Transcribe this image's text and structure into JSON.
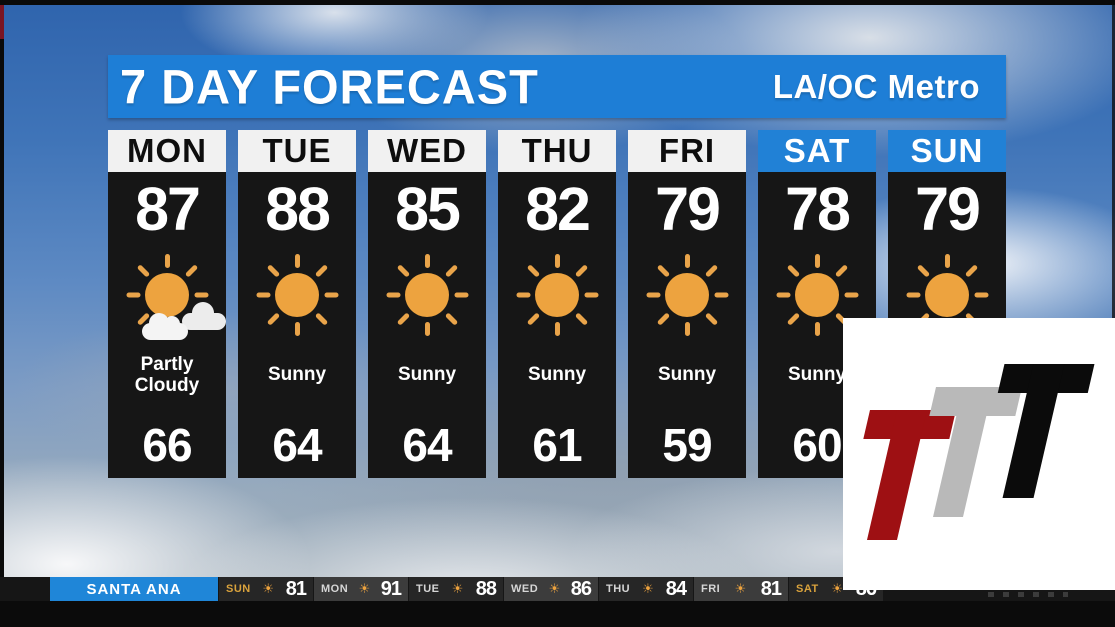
{
  "header": {
    "title": "7 DAY FORECAST",
    "region": "LA/OC Metro"
  },
  "forecast": {
    "days": [
      {
        "label": "MON",
        "high": "87",
        "icon": "partly-cloudy-icon",
        "condition": "Partly Cloudy",
        "low": "66",
        "header_style": "light"
      },
      {
        "label": "TUE",
        "high": "88",
        "icon": "sun-icon",
        "condition": "Sunny",
        "low": "64",
        "header_style": "light"
      },
      {
        "label": "WED",
        "high": "85",
        "icon": "sun-icon",
        "condition": "Sunny",
        "low": "64",
        "header_style": "light"
      },
      {
        "label": "THU",
        "high": "82",
        "icon": "sun-icon",
        "condition": "Sunny",
        "low": "61",
        "header_style": "light"
      },
      {
        "label": "FRI",
        "high": "79",
        "icon": "sun-icon",
        "condition": "Sunny",
        "low": "59",
        "header_style": "light"
      },
      {
        "label": "SAT",
        "high": "78",
        "icon": "sun-icon",
        "condition": "Sunny",
        "low": "60",
        "header_style": "blue"
      },
      {
        "label": "SUN",
        "high": "79",
        "icon": "sun-icon",
        "condition": "",
        "low": "",
        "header_style": "blue"
      }
    ]
  },
  "ticker": {
    "location": "SANTA ANA",
    "entries": [
      {
        "day": "SUN",
        "value": "81",
        "accent": true
      },
      {
        "day": "MON",
        "value": "91",
        "accent": false
      },
      {
        "day": "TUE",
        "value": "88",
        "accent": false
      },
      {
        "day": "WED",
        "value": "86",
        "accent": false
      },
      {
        "day": "THU",
        "value": "84",
        "accent": false
      },
      {
        "day": "FRI",
        "value": "81",
        "accent": false
      },
      {
        "day": "SAT",
        "value": "86",
        "accent": true
      }
    ]
  },
  "icons": {
    "sun_glyph": "☀"
  },
  "logo": {
    "letters": [
      "T",
      "T",
      "T"
    ]
  },
  "colors": {
    "header_blue": "#1e7ed6",
    "weekend_header_blue": "#2181d6",
    "ticker_blue": "#1f86d8",
    "sun_orange": "#eda33f",
    "panel_black": "#161616",
    "logo_red": "#9e1013",
    "logo_gray": "#b9b9b9",
    "logo_black": "#0b0b0b"
  }
}
